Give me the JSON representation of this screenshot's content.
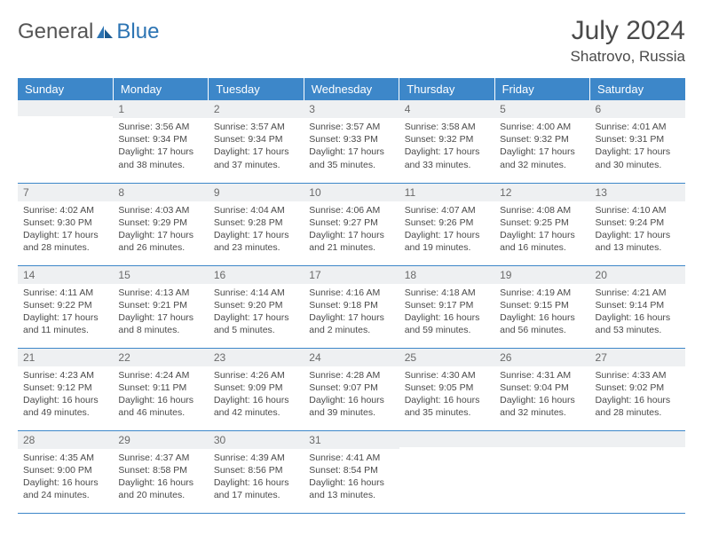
{
  "brand": {
    "general": "General",
    "blue": "Blue"
  },
  "title": "July 2024",
  "location": "Shatrovo, Russia",
  "colors": {
    "header_bg": "#3d87c9",
    "header_text": "#ffffff",
    "daynum_bg": "#eef0f2",
    "daynum_text": "#6a6a6a",
    "body_text": "#4a4a4a",
    "row_border": "#3d87c9",
    "logo_blue": "#2c74b3"
  },
  "typography": {
    "title_fontsize": 30,
    "location_fontsize": 17,
    "header_fontsize": 13,
    "daynum_fontsize": 12,
    "cell_fontsize": 10.5
  },
  "dayHeaders": [
    "Sunday",
    "Monday",
    "Tuesday",
    "Wednesday",
    "Thursday",
    "Friday",
    "Saturday"
  ],
  "weeks": [
    [
      {
        "n": "",
        "sr": "",
        "ss": "",
        "dl": ""
      },
      {
        "n": "1",
        "sr": "3:56 AM",
        "ss": "9:34 PM",
        "dl": "17 hours and 38 minutes."
      },
      {
        "n": "2",
        "sr": "3:57 AM",
        "ss": "9:34 PM",
        "dl": "17 hours and 37 minutes."
      },
      {
        "n": "3",
        "sr": "3:57 AM",
        "ss": "9:33 PM",
        "dl": "17 hours and 35 minutes."
      },
      {
        "n": "4",
        "sr": "3:58 AM",
        "ss": "9:32 PM",
        "dl": "17 hours and 33 minutes."
      },
      {
        "n": "5",
        "sr": "4:00 AM",
        "ss": "9:32 PM",
        "dl": "17 hours and 32 minutes."
      },
      {
        "n": "6",
        "sr": "4:01 AM",
        "ss": "9:31 PM",
        "dl": "17 hours and 30 minutes."
      }
    ],
    [
      {
        "n": "7",
        "sr": "4:02 AM",
        "ss": "9:30 PM",
        "dl": "17 hours and 28 minutes."
      },
      {
        "n": "8",
        "sr": "4:03 AM",
        "ss": "9:29 PM",
        "dl": "17 hours and 26 minutes."
      },
      {
        "n": "9",
        "sr": "4:04 AM",
        "ss": "9:28 PM",
        "dl": "17 hours and 23 minutes."
      },
      {
        "n": "10",
        "sr": "4:06 AM",
        "ss": "9:27 PM",
        "dl": "17 hours and 21 minutes."
      },
      {
        "n": "11",
        "sr": "4:07 AM",
        "ss": "9:26 PM",
        "dl": "17 hours and 19 minutes."
      },
      {
        "n": "12",
        "sr": "4:08 AM",
        "ss": "9:25 PM",
        "dl": "17 hours and 16 minutes."
      },
      {
        "n": "13",
        "sr": "4:10 AM",
        "ss": "9:24 PM",
        "dl": "17 hours and 13 minutes."
      }
    ],
    [
      {
        "n": "14",
        "sr": "4:11 AM",
        "ss": "9:22 PM",
        "dl": "17 hours and 11 minutes."
      },
      {
        "n": "15",
        "sr": "4:13 AM",
        "ss": "9:21 PM",
        "dl": "17 hours and 8 minutes."
      },
      {
        "n": "16",
        "sr": "4:14 AM",
        "ss": "9:20 PM",
        "dl": "17 hours and 5 minutes."
      },
      {
        "n": "17",
        "sr": "4:16 AM",
        "ss": "9:18 PM",
        "dl": "17 hours and 2 minutes."
      },
      {
        "n": "18",
        "sr": "4:18 AM",
        "ss": "9:17 PM",
        "dl": "16 hours and 59 minutes."
      },
      {
        "n": "19",
        "sr": "4:19 AM",
        "ss": "9:15 PM",
        "dl": "16 hours and 56 minutes."
      },
      {
        "n": "20",
        "sr": "4:21 AM",
        "ss": "9:14 PM",
        "dl": "16 hours and 53 minutes."
      }
    ],
    [
      {
        "n": "21",
        "sr": "4:23 AM",
        "ss": "9:12 PM",
        "dl": "16 hours and 49 minutes."
      },
      {
        "n": "22",
        "sr": "4:24 AM",
        "ss": "9:11 PM",
        "dl": "16 hours and 46 minutes."
      },
      {
        "n": "23",
        "sr": "4:26 AM",
        "ss": "9:09 PM",
        "dl": "16 hours and 42 minutes."
      },
      {
        "n": "24",
        "sr": "4:28 AM",
        "ss": "9:07 PM",
        "dl": "16 hours and 39 minutes."
      },
      {
        "n": "25",
        "sr": "4:30 AM",
        "ss": "9:05 PM",
        "dl": "16 hours and 35 minutes."
      },
      {
        "n": "26",
        "sr": "4:31 AM",
        "ss": "9:04 PM",
        "dl": "16 hours and 32 minutes."
      },
      {
        "n": "27",
        "sr": "4:33 AM",
        "ss": "9:02 PM",
        "dl": "16 hours and 28 minutes."
      }
    ],
    [
      {
        "n": "28",
        "sr": "4:35 AM",
        "ss": "9:00 PM",
        "dl": "16 hours and 24 minutes."
      },
      {
        "n": "29",
        "sr": "4:37 AM",
        "ss": "8:58 PM",
        "dl": "16 hours and 20 minutes."
      },
      {
        "n": "30",
        "sr": "4:39 AM",
        "ss": "8:56 PM",
        "dl": "16 hours and 17 minutes."
      },
      {
        "n": "31",
        "sr": "4:41 AM",
        "ss": "8:54 PM",
        "dl": "16 hours and 13 minutes."
      },
      {
        "n": "",
        "sr": "",
        "ss": "",
        "dl": ""
      },
      {
        "n": "",
        "sr": "",
        "ss": "",
        "dl": ""
      },
      {
        "n": "",
        "sr": "",
        "ss": "",
        "dl": ""
      }
    ]
  ],
  "labels": {
    "sunrise": "Sunrise:",
    "sunset": "Sunset:",
    "daylight": "Daylight:"
  }
}
